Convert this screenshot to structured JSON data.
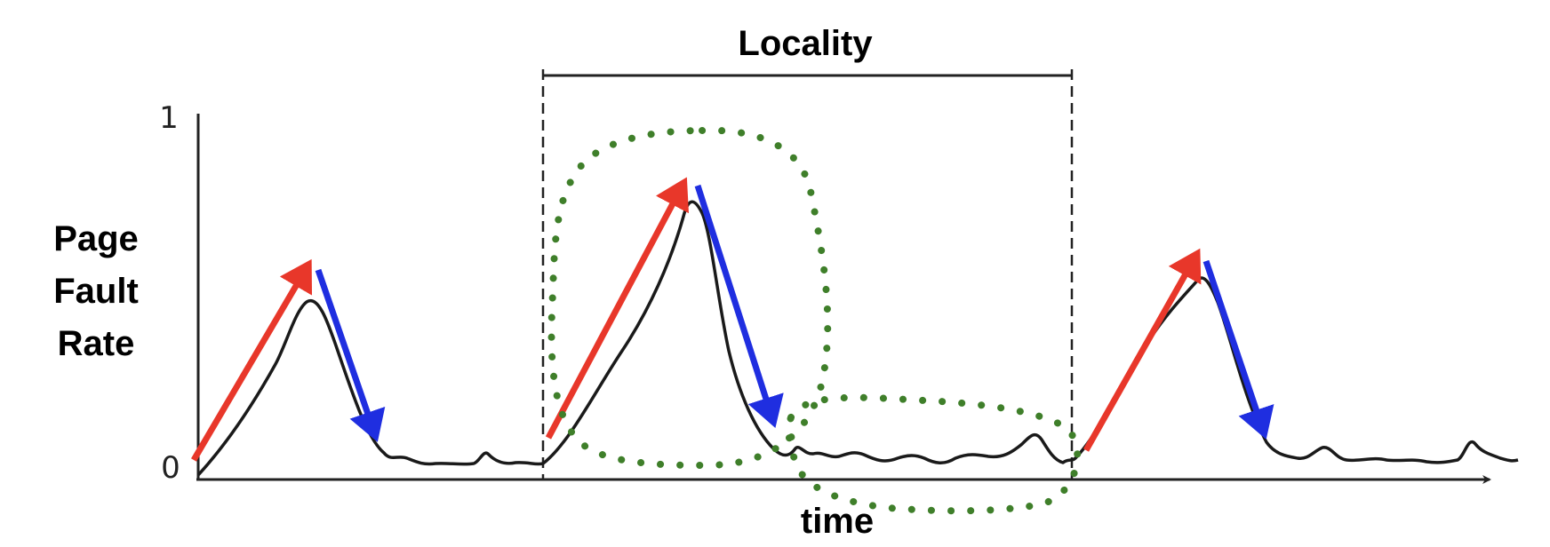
{
  "diagram": {
    "title": "Locality",
    "ylabel": [
      "Page",
      "Fault",
      "Rate"
    ],
    "xlabel": "time",
    "ytick_top": "1",
    "ytick_bottom": "0"
  },
  "colors": {
    "curve": "#1a1a1a",
    "rise_arrow": "#e8372a",
    "fall_arrow": "#1f2ee0",
    "locality_dots": "#3f7f2a",
    "axis": "#222222"
  }
}
